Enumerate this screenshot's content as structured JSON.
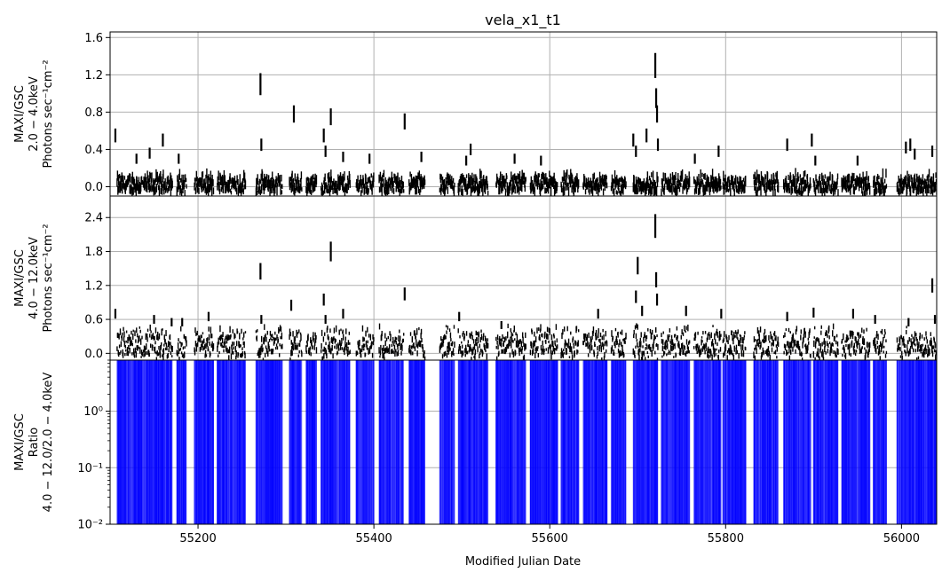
{
  "chart_data": {
    "type": "scatter",
    "title": "vela_x1_t1",
    "xlabel": "Modified Julian Date",
    "xlim": [
      55100,
      56040
    ],
    "x_ticks": [
      55200,
      55400,
      55600,
      55800,
      56000
    ],
    "x_tick_labels": [
      "55200",
      "55400",
      "55600",
      "55800",
      "56000"
    ],
    "grid": true,
    "panels": [
      {
        "ylabel_lines": [
          "MAXI/GSC",
          "2.0 − 4.0keV",
          "Photons sec⁻¹cm⁻²"
        ],
        "ylim": [
          -0.1,
          1.66
        ],
        "y_ticks": [
          0.0,
          0.4,
          0.8,
          1.2,
          1.6
        ],
        "y_tick_labels": [
          "0.0",
          "0.4",
          "0.8",
          "1.2",
          "1.6"
        ],
        "scale": "linear",
        "color": "#000000",
        "series": [
          {
            "kind": "dense",
            "windows": [
              [
                55108,
                55137
              ],
              [
                55138,
                55171
              ],
              [
                55176,
                55187
              ],
              [
                55196,
                55218
              ],
              [
                55222,
                55254
              ],
              [
                55266,
                55296
              ],
              [
                55304,
                55318
              ],
              [
                55323,
                55335
              ],
              [
                55340,
                55373
              ],
              [
                55380,
                55400
              ],
              [
                55406,
                55434
              ],
              [
                55440,
                55458
              ],
              [
                55475,
                55492
              ],
              [
                55496,
                55530
              ],
              [
                55539,
                55573
              ],
              [
                55578,
                55609
              ],
              [
                55613,
                55633
              ],
              [
                55638,
                55665
              ],
              [
                55670,
                55687
              ],
              [
                55695,
                55723
              ],
              [
                55727,
                55759
              ],
              [
                55764,
                55795
              ],
              [
                55797,
                55823
              ],
              [
                55832,
                55860
              ],
              [
                55866,
                55897
              ],
              [
                55900,
                55928
              ],
              [
                55932,
                55964
              ],
              [
                55968,
                55983
              ],
              [
                55995,
                56040
              ]
            ],
            "base": 0.0,
            "amp": 0.17
          },
          {
            "kind": "points",
            "points": [
              [
                55106,
                0.55
              ],
              [
                55130,
                0.3
              ],
              [
                55145,
                0.36
              ],
              [
                55160,
                0.5
              ],
              [
                55178,
                0.3
              ],
              [
                55271,
                1.1
              ],
              [
                55272,
                0.45
              ],
              [
                55309,
                0.78
              ],
              [
                55343,
                0.55
              ],
              [
                55345,
                0.38
              ],
              [
                55351,
                0.75
              ],
              [
                55365,
                0.32
              ],
              [
                55395,
                0.3
              ],
              [
                55435,
                0.7
              ],
              [
                55454,
                0.32
              ],
              [
                55505,
                0.28
              ],
              [
                55510,
                0.4
              ],
              [
                55560,
                0.3
              ],
              [
                55590,
                0.28
              ],
              [
                55695,
                0.5
              ],
              [
                55698,
                0.38
              ],
              [
                55710,
                0.55
              ],
              [
                55720,
                1.3
              ],
              [
                55721,
                0.95
              ],
              [
                55722,
                0.78
              ],
              [
                55723,
                0.45
              ],
              [
                55765,
                0.3
              ],
              [
                55792,
                0.38
              ],
              [
                55870,
                0.45
              ],
              [
                55898,
                0.5
              ],
              [
                55902,
                0.28
              ],
              [
                55950,
                0.28
              ],
              [
                56005,
                0.42
              ],
              [
                56010,
                0.45
              ],
              [
                56015,
                0.35
              ],
              [
                56035,
                0.38
              ]
            ]
          }
        ]
      },
      {
        "ylabel_lines": [
          "MAXI/GSC",
          "4.0 − 12.0keV",
          "Photons sec⁻¹cm⁻²"
        ],
        "ylim": [
          -0.12,
          2.78
        ],
        "y_ticks": [
          0.0,
          0.6,
          1.2,
          1.8,
          2.4
        ],
        "y_tick_labels": [
          "0.0",
          "0.6",
          "1.2",
          "1.8",
          "2.4"
        ],
        "scale": "linear",
        "color": "#000000",
        "series": [
          {
            "kind": "dense",
            "windows": [
              [
                55108,
                55137
              ],
              [
                55138,
                55171
              ],
              [
                55176,
                55187
              ],
              [
                55196,
                55218
              ],
              [
                55222,
                55254
              ],
              [
                55266,
                55296
              ],
              [
                55304,
                55318
              ],
              [
                55323,
                55335
              ],
              [
                55340,
                55373
              ],
              [
                55380,
                55400
              ],
              [
                55406,
                55434
              ],
              [
                55440,
                55458
              ],
              [
                55475,
                55492
              ],
              [
                55496,
                55530
              ],
              [
                55539,
                55573
              ],
              [
                55578,
                55609
              ],
              [
                55613,
                55633
              ],
              [
                55638,
                55665
              ],
              [
                55670,
                55687
              ],
              [
                55695,
                55723
              ],
              [
                55727,
                55759
              ],
              [
                55764,
                55795
              ],
              [
                55797,
                55823
              ],
              [
                55832,
                55860
              ],
              [
                55866,
                55897
              ],
              [
                55900,
                55928
              ],
              [
                55932,
                55964
              ],
              [
                55968,
                55983
              ],
              [
                55995,
                56040
              ]
            ],
            "base": 0.1,
            "amp": 0.45
          },
          {
            "kind": "points",
            "points": [
              [
                55106,
                0.7
              ],
              [
                55150,
                0.6
              ],
              [
                55170,
                0.55
              ],
              [
                55182,
                0.55
              ],
              [
                55212,
                0.65
              ],
              [
                55271,
                1.45
              ],
              [
                55272,
                0.6
              ],
              [
                55306,
                0.85
              ],
              [
                55343,
                0.95
              ],
              [
                55345,
                0.6
              ],
              [
                55351,
                1.8
              ],
              [
                55365,
                0.7
              ],
              [
                55435,
                1.05
              ],
              [
                55497,
                0.65
              ],
              [
                55545,
                0.5
              ],
              [
                55655,
                0.7
              ],
              [
                55700,
                1.55
              ],
              [
                55698,
                1.0
              ],
              [
                55705,
                0.75
              ],
              [
                55720,
                2.25
              ],
              [
                55721,
                1.3
              ],
              [
                55722,
                0.95
              ],
              [
                55755,
                0.75
              ],
              [
                55795,
                0.7
              ],
              [
                55870,
                0.65
              ],
              [
                55900,
                0.72
              ],
              [
                55945,
                0.7
              ],
              [
                55970,
                0.6
              ],
              [
                56008,
                0.55
              ],
              [
                56035,
                1.2
              ],
              [
                56038,
                0.6
              ]
            ]
          }
        ]
      },
      {
        "ylabel_lines": [
          "MAXI/GSC",
          "Ratio",
          "4.0 − 12.0/2.0 − 4.0keV"
        ],
        "ylim": [
          0.01,
          8
        ],
        "y_ticks": [
          0.01,
          0.1,
          1.0
        ],
        "y_tick_labels": [
          "10⁻²",
          "10⁻¹",
          "10⁰"
        ],
        "scale": "log",
        "color": "#0000ff",
        "series": [
          {
            "kind": "ratio-bands",
            "windows": [
              [
                55108,
                55137
              ],
              [
                55138,
                55171
              ],
              [
                55176,
                55187
              ],
              [
                55196,
                55218
              ],
              [
                55222,
                55254
              ],
              [
                55266,
                55296
              ],
              [
                55304,
                55318
              ],
              [
                55323,
                55335
              ],
              [
                55340,
                55373
              ],
              [
                55380,
                55400
              ],
              [
                55406,
                55434
              ],
              [
                55440,
                55458
              ],
              [
                55475,
                55492
              ],
              [
                55496,
                55530
              ],
              [
                55539,
                55573
              ],
              [
                55578,
                55609
              ],
              [
                55613,
                55633
              ],
              [
                55638,
                55665
              ],
              [
                55670,
                55687
              ],
              [
                55695,
                55723
              ],
              [
                55727,
                55759
              ],
              [
                55764,
                55795
              ],
              [
                55797,
                55823
              ],
              [
                55832,
                55860
              ],
              [
                55866,
                55897
              ],
              [
                55900,
                55928
              ],
              [
                55932,
                55964
              ],
              [
                55968,
                55983
              ],
              [
                55995,
                56040
              ]
            ]
          }
        ]
      }
    ]
  }
}
